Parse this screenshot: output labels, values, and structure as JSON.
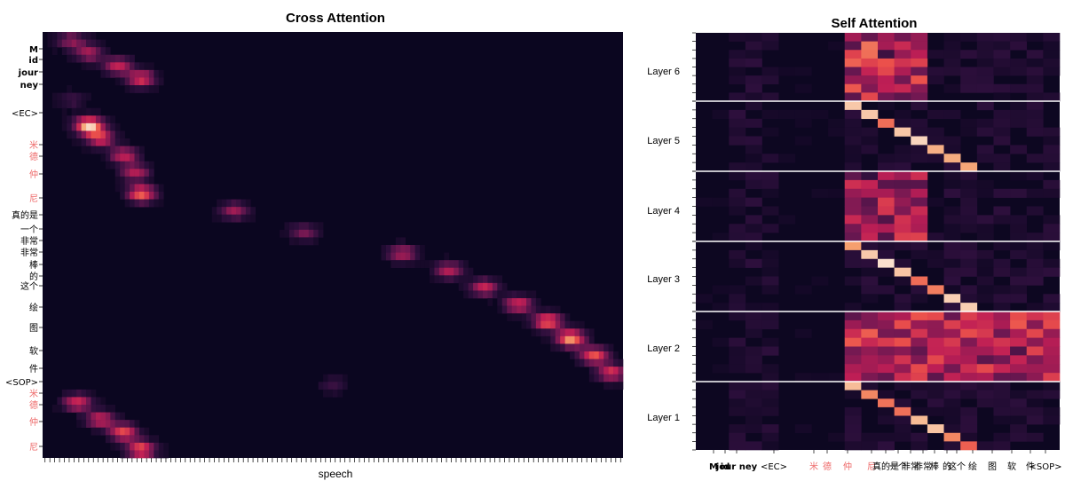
{
  "chart_data": [
    {
      "type": "heatmap",
      "title": "Cross Attention",
      "xlabel": "speech",
      "ylabel": "",
      "y_tokens": [
        "M",
        "id",
        "jour",
        "ney",
        "<EC>",
        "米",
        "德",
        "仲",
        "尼",
        "真的是",
        "一个",
        "非常",
        "非常",
        "棒",
        "的",
        "这个",
        "绘",
        "图",
        "软",
        "件",
        "<SOP>",
        "米",
        "德",
        "仲",
        "尼"
      ],
      "y_token_styles": [
        "bold",
        "bold",
        "bold",
        "bold",
        "normal",
        "cn",
        "cn",
        "cn",
        "cn",
        "normal",
        "normal",
        "normal",
        "normal",
        "normal",
        "normal",
        "normal",
        "normal",
        "normal",
        "normal",
        "normal",
        "normal",
        "cn",
        "cn",
        "cn",
        "cn"
      ],
      "x_tick_count": 120,
      "colormap": "rocket",
      "colors": {
        "low": "#07051c",
        "mid": "#cf2150",
        "high": "#fae3d1"
      }
    },
    {
      "type": "heatmap",
      "title": "Self Attention",
      "layers": [
        "Layer 6",
        "Layer 5",
        "Layer 4",
        "Layer 3",
        "Layer 2",
        "Layer 1"
      ],
      "x_tokens": [
        "M",
        "id",
        "jour ney",
        "<EC>",
        "米",
        "德",
        "仲",
        "尼",
        "真的是",
        "一个",
        "非常",
        "非常",
        "棒",
        "的",
        "这个",
        "绘",
        "图",
        "软",
        "件",
        "<SOP>"
      ],
      "x_token_styles": [
        "bold",
        "bold",
        "bold",
        "normal",
        "cn",
        "cn",
        "cn",
        "cn",
        "normal",
        "normal",
        "normal",
        "normal",
        "normal",
        "normal",
        "normal",
        "normal",
        "normal",
        "normal",
        "normal",
        "normal"
      ],
      "colormap": "rocket",
      "colors": {
        "low": "#07051c",
        "mid": "#cf2150",
        "high": "#fae3d1",
        "separator": "#ffffff"
      }
    }
  ]
}
